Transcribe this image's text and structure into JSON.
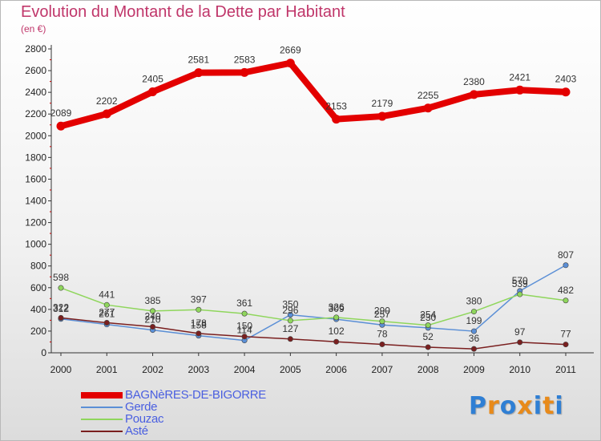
{
  "chart_data": {
    "type": "line",
    "title": "Evolution du Montant de la Dette par Habitant",
    "subtitle": "(en €)",
    "x": [
      "2000",
      "2001",
      "2002",
      "2003",
      "2004",
      "2005",
      "2006",
      "2007",
      "2008",
      "2009",
      "2010",
      "2011"
    ],
    "y_ticks": [
      "0",
      "200",
      "400",
      "600",
      "800",
      "1000",
      "1200",
      "1400",
      "1600",
      "1800",
      "2000",
      "2200",
      "2400",
      "2600",
      "2800"
    ],
    "ylim": [
      0,
      2800
    ],
    "grid": false,
    "legend_position": "bottom-left",
    "series": [
      {
        "name": "BAGNèRES-DE-BIGORRE",
        "color": "#e30000",
        "values": [
          2089,
          2202,
          2405,
          2581,
          2583,
          2669,
          2153,
          2179,
          2255,
          2380,
          2421,
          2403
        ]
      },
      {
        "name": "Gerde",
        "color": "#5b8fd6",
        "values": [
          312,
          261,
          210,
          158,
          114,
          350,
          309,
          257,
          230,
          199,
          570,
          807
        ]
      },
      {
        "name": "Pouzac",
        "color": "#8fd65c",
        "values": [
          598,
          441,
          385,
          397,
          361,
          296,
          326,
          290,
          254,
          380,
          539,
          482
        ]
      },
      {
        "name": "Asté",
        "color": "#7a1f1f",
        "values": [
          322,
          277,
          240,
          178,
          150,
          127,
          102,
          78,
          52,
          36,
          97,
          77
        ]
      }
    ]
  },
  "logo": {
    "text": [
      "P",
      "r",
      "o",
      "x",
      "i",
      "t",
      "i"
    ],
    "colors": [
      "#2f7fd4",
      "#e88a1a",
      "#2f7fd4",
      "#e88a1a",
      "#2f7fd4",
      "#e88a1a",
      "#2f7fd4"
    ]
  }
}
